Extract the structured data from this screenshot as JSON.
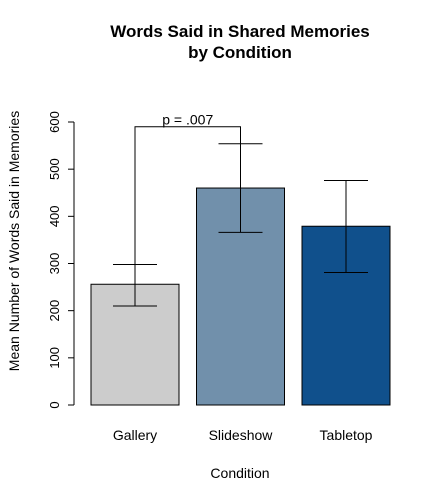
{
  "chart_data": {
    "type": "bar",
    "title_lines": [
      "Words Said in Shared Memories",
      "by Condition"
    ],
    "xlabel": "Condition",
    "ylabel": "Mean Number of Words Said in Memories",
    "categories": [
      "Gallery",
      "Slideshow",
      "Tabletop"
    ],
    "values": [
      256,
      460,
      379
    ],
    "error_low": [
      210,
      366,
      281
    ],
    "error_high": [
      298,
      554,
      476
    ],
    "colors": [
      "#cccccc",
      "#7190ab",
      "#10508c"
    ],
    "ylim": [
      0,
      600
    ],
    "yticks": [
      0,
      100,
      200,
      300,
      400,
      500,
      600
    ],
    "ytick_labels": [
      "0",
      "100",
      "200",
      "300",
      "400",
      "500",
      "600"
    ],
    "annotation": {
      "text": "p = .007",
      "from_category": "Gallery",
      "to_category": "Slideshow",
      "y_level": 590,
      "left_end": 298,
      "right_end": 554
    }
  }
}
